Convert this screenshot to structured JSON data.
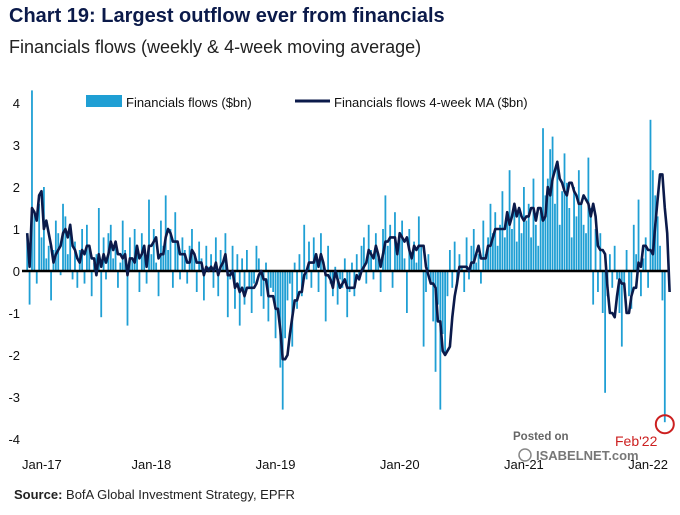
{
  "title": "Chart 19: Largest outflow ever from financials",
  "subtitle": "Financials flows (weekly & 4-week moving average)",
  "source_label": "Source:",
  "source_text": "BofA Global Investment Strategy, EPFR",
  "watermark": {
    "line1": "Posted on",
    "line2": "ISABELNET.com"
  },
  "annotation": {
    "text": "Feb'22",
    "color": "#cc1f1f"
  },
  "colors": {
    "bars": "#1f9fd4",
    "ma_line": "#0b1a4a",
    "zero_line": "#000000"
  },
  "chart_data": {
    "type": "bar",
    "title": "Financials flows (weekly & 4-week moving average)",
    "ylabel": "$bn",
    "ylim": [
      -4,
      4
    ],
    "yticks": [
      -4,
      -3,
      -2,
      -1,
      0,
      1,
      2,
      3,
      4
    ],
    "xticks": [
      "Jan-17",
      "Jan-18",
      "Jan-19",
      "Jan-20",
      "Jan-21",
      "Jan-22"
    ],
    "start": "Jan-17",
    "unit": "weekly",
    "legend": [
      "Financials flows ($bn)",
      "Financials flows 4-week MA ($bn)"
    ],
    "legend_position": "top",
    "series": [
      {
        "name": "Financials flows ($bn)",
        "type": "bar",
        "values": [
          0.9,
          -0.8,
          4.3,
          1.4,
          -0.3,
          1.6,
          0.8,
          2.0,
          0.3,
          0.6,
          -0.7,
          0.5,
          1.2,
          0.9,
          -0.1,
          1.6,
          1.3,
          0.4,
          0.9,
          -0.2,
          0.7,
          -0.4,
          0.5,
          1.0,
          -0.3,
          1.1,
          0.6,
          -0.6,
          0.2,
          0.4,
          1.5,
          -1.1,
          0.8,
          -0.2,
          0.9,
          1.1,
          0.3,
          0.6,
          -0.4,
          0.2,
          1.2,
          0.5,
          -1.3,
          0.8,
          0.3,
          1.0,
          0.4,
          -0.5,
          0.9,
          0.6,
          -0.3,
          1.7,
          0.4,
          1.0,
          0.2,
          -0.6,
          1.2,
          0.6,
          1.8,
          0.5,
          1.0,
          -0.4,
          1.4,
          0.7,
          -0.2,
          0.8,
          0.5,
          -0.3,
          0.6,
          1.0,
          0.4,
          -0.5,
          0.7,
          0.3,
          -0.7,
          0.6,
          0.1,
          0.4,
          -0.4,
          0.8,
          -0.6,
          0.5,
          0.2,
          0.9,
          -1.1,
          -0.2,
          0.6,
          -0.9,
          0.4,
          -1.3,
          0.3,
          -0.8,
          0.5,
          -0.4,
          -1.0,
          -0.3,
          0.6,
          0.3,
          -0.6,
          -0.9,
          0.2,
          -1.2,
          -0.4,
          -0.5,
          -1.6,
          -1.0,
          -2.3,
          -3.3,
          -1.6,
          -0.7,
          -0.3,
          -1.8,
          0.2,
          -0.9,
          0.4,
          -0.6,
          1.1,
          -0.2,
          0.7,
          -0.4,
          0.8,
          0.3,
          -0.5,
          0.9,
          0.2,
          -1.2,
          0.6,
          -0.3,
          -0.6,
          0.1,
          -0.8,
          -0.2,
          -0.4,
          0.3,
          -1.1,
          -0.5,
          0.2,
          -0.6,
          0.4,
          -0.2,
          0.6,
          0.8,
          -0.3,
          1.1,
          0.5,
          -0.2,
          0.9,
          0.3,
          -0.5,
          1.0,
          1.8,
          0.6,
          1.1,
          -0.4,
          1.4,
          0.5,
          0.8,
          1.2,
          0.3,
          -1.0,
          1.0,
          0.4,
          0.7,
          0.2,
          1.3,
          0.6,
          -1.8,
          -0.5,
          0.4,
          -0.3,
          -1.2,
          -2.4,
          -0.8,
          -3.3,
          -1.5,
          -2.0,
          -0.6,
          0.5,
          -0.4,
          0.7,
          -0.3,
          0.4,
          0.1,
          -0.5,
          0.8,
          -0.2,
          0.6,
          1.0,
          0.2,
          0.4,
          -0.3,
          1.2,
          0.4,
          0.8,
          1.6,
          0.9,
          1.4,
          0.6,
          1.1,
          1.9,
          0.8,
          1.3,
          2.4,
          1.0,
          1.6,
          0.7,
          1.5,
          0.9,
          2.0,
          1.2,
          1.6,
          0.8,
          2.2,
          1.1,
          0.6,
          1.4,
          3.4,
          1.8,
          2.2,
          2.9,
          3.2,
          1.6,
          2.6,
          1.1,
          1.9,
          2.8,
          2.1,
          1.5,
          0.8,
          2.0,
          1.3,
          2.4,
          1.6,
          1.1,
          0.9,
          2.7,
          1.5,
          -0.8,
          1.0,
          -0.5,
          0.9,
          -1.0,
          -2.9,
          -0.6,
          0.4,
          -0.4,
          0.6,
          -0.2,
          -1.0,
          -1.8,
          -0.3,
          0.5,
          -0.6,
          -0.9,
          1.1,
          0.4,
          1.7,
          -0.6,
          0.3,
          0.8,
          -0.4,
          3.6,
          2.4,
          1.8,
          1.3,
          0.6,
          -0.7,
          -3.6
        ]
      },
      {
        "name": "Financials flows 4-week MA ($bn)",
        "type": "line",
        "values": [
          0.9,
          0.1,
          1.5,
          1.4,
          1.2,
          1.8,
          1.9,
          1.0,
          1.2,
          0.9,
          0.6,
          0.2,
          0.4,
          0.5,
          0.6,
          0.9,
          1.0,
          0.8,
          1.1,
          0.6,
          0.5,
          0.3,
          0.2,
          0.5,
          0.4,
          0.6,
          0.6,
          0.3,
          0.3,
          -0.1,
          0.4,
          0.1,
          0.4,
          0.2,
          0.4,
          0.7,
          0.5,
          0.7,
          0.4,
          0.4,
          0.3,
          0.4,
          -0.1,
          0.3,
          0.3,
          0.2,
          0.6,
          0.3,
          0.4,
          0.6,
          0.1,
          0.6,
          0.6,
          0.7,
          0.8,
          0.3,
          0.4,
          0.4,
          0.8,
          1.0,
          0.9,
          0.7,
          0.7,
          0.7,
          0.4,
          0.4,
          0.4,
          0.2,
          0.2,
          0.5,
          0.4,
          0.2,
          0.2,
          0.2,
          -0.1,
          0.1,
          0.0,
          0.1,
          0.0,
          0.2,
          -0.1,
          0.1,
          0.2,
          0.4,
          -0.1,
          -0.1,
          0.0,
          -0.4,
          -0.3,
          -0.5,
          -0.4,
          -0.6,
          -0.4,
          -0.4,
          -0.4,
          -0.4,
          -0.3,
          -0.1,
          0.0,
          -0.2,
          -0.2,
          -0.6,
          -0.6,
          -0.6,
          -0.9,
          -0.9,
          -1.4,
          -2.1,
          -2.1,
          -2.0,
          -1.5,
          -1.1,
          -0.7,
          -0.7,
          -0.5,
          -0.5,
          -0.1,
          0.0,
          0.2,
          0.2,
          0.2,
          0.4,
          0.1,
          0.4,
          0.2,
          -0.1,
          -0.1,
          -0.2,
          -0.4,
          0.0,
          -0.2,
          -0.4,
          -0.3,
          -0.2,
          -0.4,
          -0.4,
          -0.4,
          -0.4,
          -0.1,
          -0.2,
          0.0,
          0.1,
          0.2,
          0.5,
          0.4,
          0.3,
          0.6,
          0.4,
          0.1,
          0.4,
          0.7,
          0.7,
          0.8,
          0.8,
          0.8,
          0.4,
          0.9,
          0.8,
          0.7,
          0.8,
          0.5,
          0.3,
          0.6,
          0.5,
          0.6,
          0.6,
          0.6,
          0.1,
          -0.1,
          -0.3,
          -0.3,
          -0.4,
          -1.2,
          -1.2,
          -1.9,
          -2.0,
          -1.9,
          -1.8,
          -1.1,
          -0.6,
          -0.3,
          0.1,
          0.1,
          0.1,
          0.1,
          0.0,
          0.2,
          0.2,
          0.4,
          0.6,
          0.3,
          0.3,
          0.3,
          0.6,
          0.6,
          0.8,
          1.0,
          1.0,
          1.0,
          1.0,
          1.0,
          1.4,
          1.1,
          1.3,
          1.6,
          1.3,
          1.5,
          1.3,
          1.2,
          1.3,
          1.3,
          1.5,
          1.5,
          1.2,
          1.5,
          1.5,
          1.2,
          1.3,
          2.0,
          1.8,
          2.2,
          2.4,
          2.6,
          2.2,
          2.1,
          1.9,
          1.8,
          2.1,
          2.1,
          1.9,
          1.8,
          1.6,
          1.6,
          1.8,
          1.7,
          1.6,
          1.3,
          1.6,
          1.3,
          0.6,
          0.5,
          0.5,
          0.4,
          -0.4,
          -1.0,
          -1.0,
          -1.1,
          -0.6,
          -0.2,
          -0.3,
          -0.3,
          -1.0,
          -1.0,
          -0.6,
          -0.4,
          -0.4,
          0.2,
          0.1,
          0.6,
          0.6,
          0.5,
          0.5,
          0.4,
          1.1,
          1.7,
          2.3,
          2.3,
          1.5,
          0.9,
          -0.5
        ]
      }
    ]
  }
}
